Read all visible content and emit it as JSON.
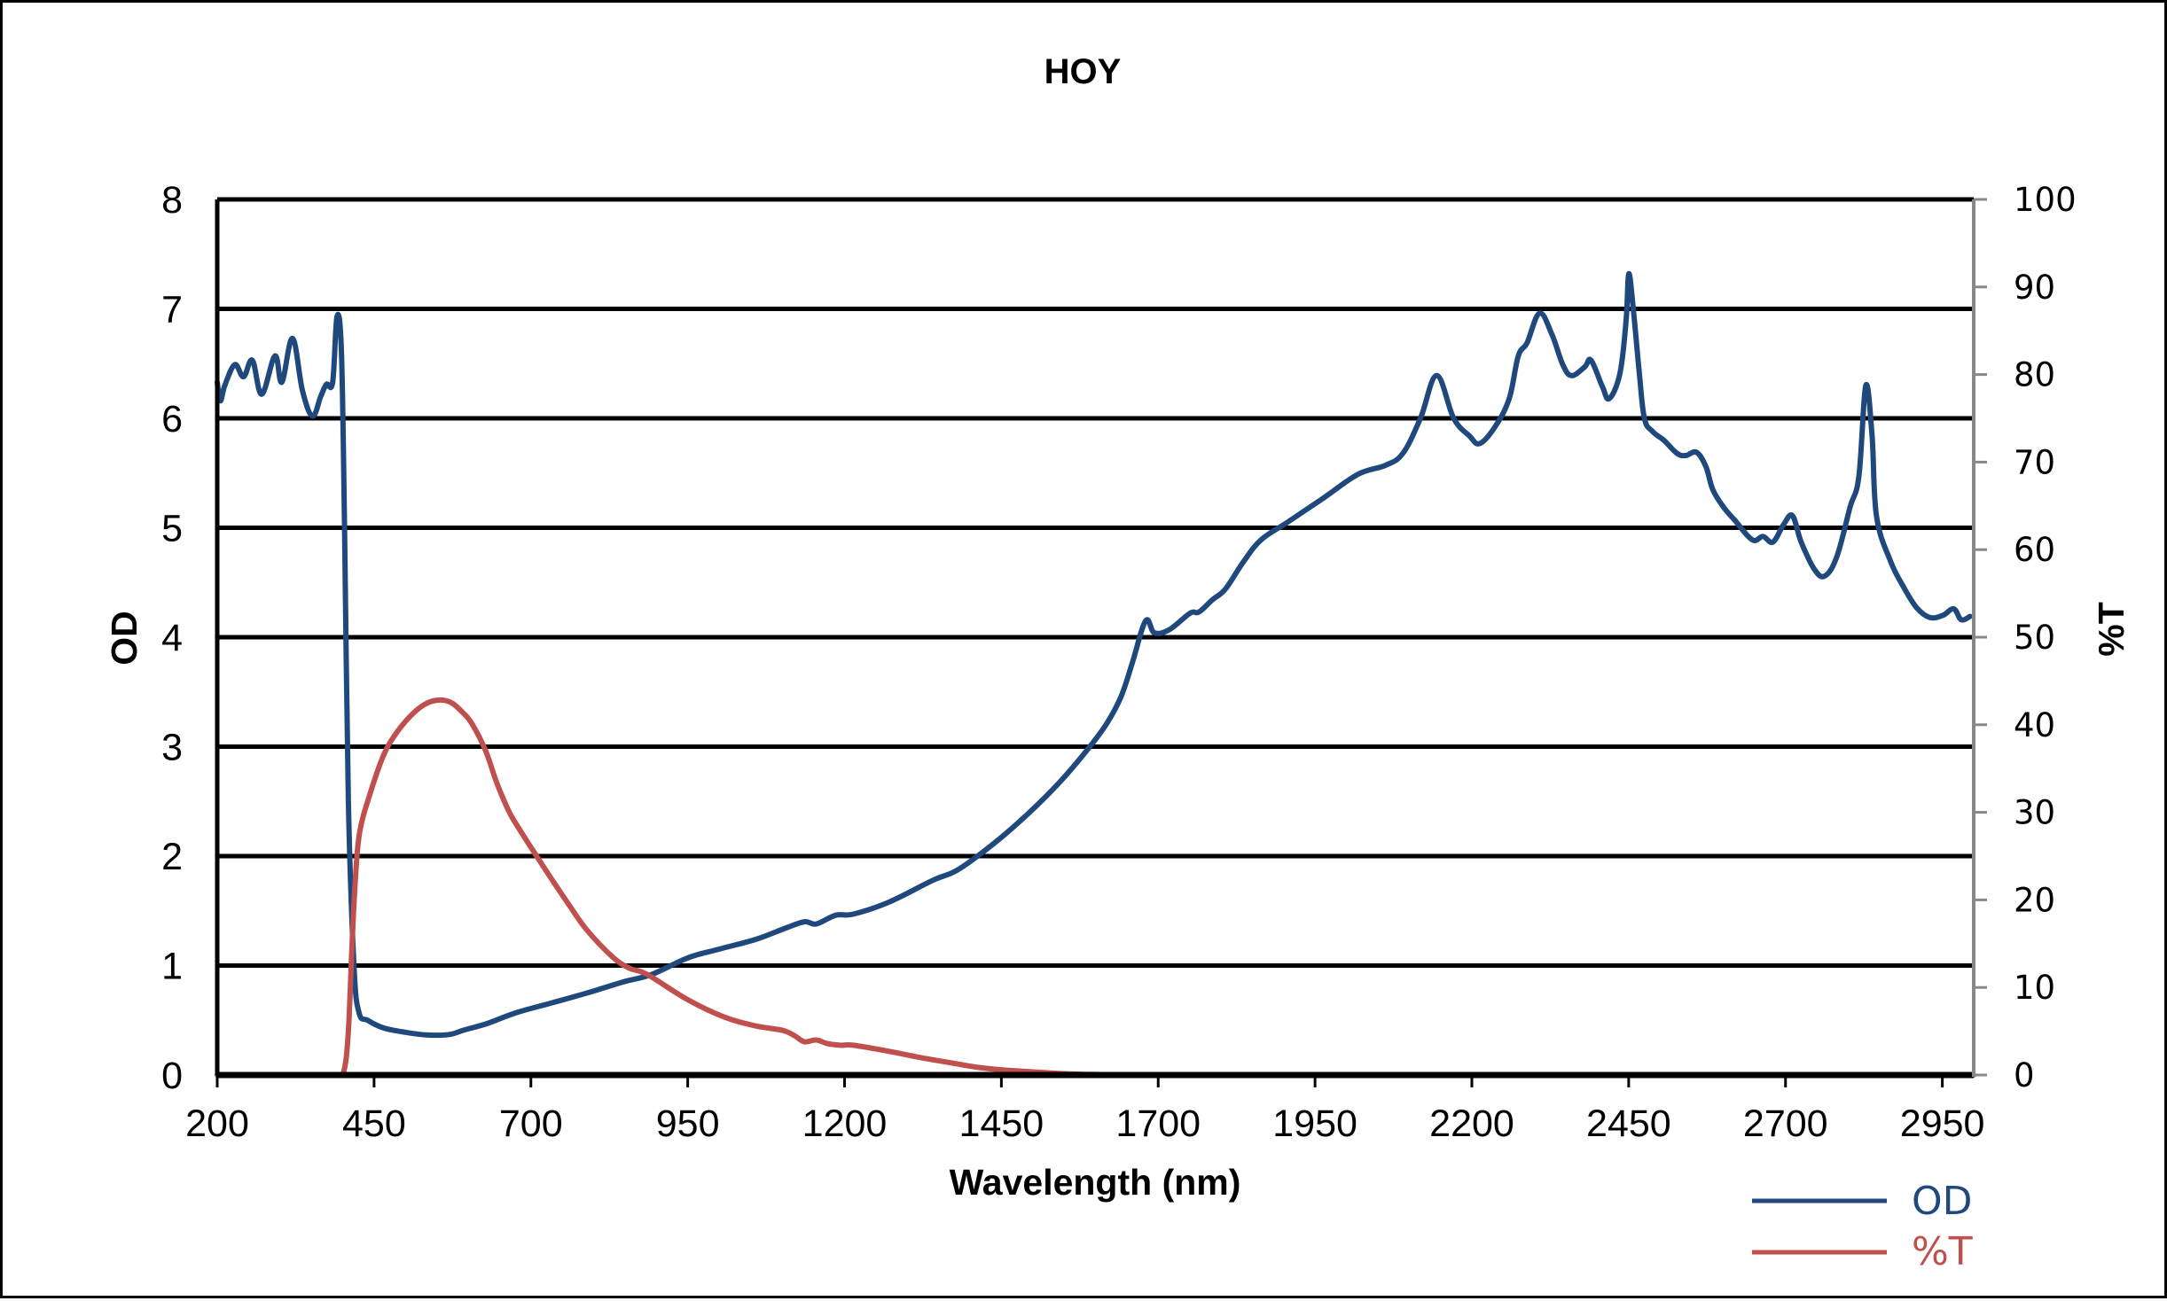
{
  "chart_data": {
    "type": "line",
    "title": "HOY",
    "xlabel": "Wavelength (nm)",
    "ylabel": "OD",
    "y2label": "%T",
    "xlim": [
      200,
      3000
    ],
    "ylim": [
      0,
      8
    ],
    "y2lim": [
      0,
      100
    ],
    "xticks": [
      "200",
      "450",
      "700",
      "950",
      "1200",
      "1450",
      "1700",
      "1950",
      "2200",
      "2450",
      "2700",
      "2950"
    ],
    "yticks": [
      "0",
      "1",
      "2",
      "3",
      "4",
      "5",
      "6",
      "7",
      "8"
    ],
    "y2ticks": [
      "0",
      "10",
      "20",
      "30",
      "40",
      "50",
      "60",
      "70",
      "80",
      "90",
      "100"
    ],
    "grid": "horizontal",
    "legend": {
      "placement": "bottom-right",
      "entries": [
        "OD",
        "%T"
      ]
    },
    "series": [
      {
        "name": "OD",
        "axis": "left",
        "color": "#1F497D",
        "x": [
          200,
          205,
          212,
          228,
          242,
          256,
          271,
          292,
          303,
          320,
          336,
          352,
          365,
          374,
          384,
          391,
          398,
          403,
          409,
          418,
          426,
          440,
          465,
          500,
          536,
          570,
          593,
          630,
          677,
          734,
          790,
          847,
          893,
          950,
          1000,
          1059,
          1105,
          1136,
          1155,
          1186,
          1214,
          1271,
          1341,
          1376,
          1412,
          1460,
          1506,
          1550,
          1591,
          1619,
          1641,
          1659,
          1680,
          1694,
          1718,
          1751,
          1765,
          1786,
          1807,
          1836,
          1864,
          1906,
          1963,
          2019,
          2062,
          2090,
          2118,
          2144,
          2171,
          2196,
          2213,
          2239,
          2260,
          2274,
          2288,
          2308,
          2328,
          2345,
          2359,
          2380,
          2390,
          2408,
          2419,
          2436,
          2446,
          2450,
          2457,
          2467,
          2475,
          2488,
          2506,
          2527,
          2541,
          2558,
          2573,
          2584,
          2601,
          2619,
          2647,
          2664,
          2680,
          2697,
          2711,
          2725,
          2746,
          2763,
          2782,
          2803,
          2817,
          2828,
          2838,
          2845,
          2867,
          2888,
          2909,
          2930,
          2951,
          2968,
          2980,
          2994
        ],
        "y": [
          6.33,
          6.16,
          6.3,
          6.49,
          6.38,
          6.53,
          6.22,
          6.57,
          6.33,
          6.73,
          6.25,
          6.02,
          6.2,
          6.31,
          6.33,
          6.93,
          6.6,
          5.0,
          2.5,
          1.0,
          0.57,
          0.5,
          0.43,
          0.39,
          0.365,
          0.37,
          0.41,
          0.47,
          0.57,
          0.66,
          0.75,
          0.85,
          0.92,
          1.07,
          1.15,
          1.24,
          1.34,
          1.4,
          1.38,
          1.46,
          1.47,
          1.58,
          1.78,
          1.86,
          2.0,
          2.22,
          2.46,
          2.72,
          3.0,
          3.22,
          3.46,
          3.77,
          4.15,
          4.04,
          4.07,
          4.22,
          4.23,
          4.34,
          4.44,
          4.69,
          4.89,
          5.05,
          5.27,
          5.49,
          5.57,
          5.68,
          6.0,
          6.39,
          6.0,
          5.84,
          5.77,
          5.94,
          6.19,
          6.57,
          6.69,
          6.96,
          6.76,
          6.49,
          6.39,
          6.47,
          6.53,
          6.29,
          6.18,
          6.41,
          6.9,
          7.32,
          7.02,
          6.41,
          6.0,
          5.88,
          5.8,
          5.68,
          5.66,
          5.69,
          5.56,
          5.35,
          5.19,
          5.07,
          4.89,
          4.92,
          4.87,
          5.03,
          5.11,
          4.87,
          4.62,
          4.56,
          4.74,
          5.19,
          5.47,
          6.3,
          5.84,
          5.11,
          4.7,
          4.46,
          4.27,
          4.18,
          4.2,
          4.26,
          4.16,
          4.19
        ]
      },
      {
        "name": "%T",
        "axis": "right",
        "color": "#C0504D",
        "x": [
          200,
          390,
          402,
          409,
          415,
          420,
          427,
          444,
          465,
          485,
          508,
          530,
          550,
          571,
          590,
          607,
          628,
          645,
          663,
          677,
          720,
          762,
          790,
          830,
          857,
          885,
          950,
          1009,
          1059,
          1101,
          1120,
          1136,
          1155,
          1172,
          1193,
          1214,
          1271,
          1320,
          1369,
          1410,
          1450,
          1500,
          1550,
          1600,
          1650,
          1700,
          2000,
          2500,
          3000
        ],
        "y": [
          0,
          0,
          0.5,
          5,
          15,
          22,
          27.7,
          32.2,
          36.5,
          39,
          41,
          42.3,
          42.8,
          42.6,
          41.5,
          40,
          37,
          33.5,
          30.4,
          28.6,
          23.8,
          19.3,
          16.5,
          13.5,
          12.2,
          11.5,
          8.6,
          6.6,
          5.6,
          5.1,
          4.5,
          3.8,
          4.0,
          3.6,
          3.4,
          3.4,
          2.7,
          2.0,
          1.4,
          0.9,
          0.6,
          0.35,
          0.15,
          0.06,
          0.02,
          0.01,
          0,
          0,
          0
        ]
      }
    ]
  }
}
